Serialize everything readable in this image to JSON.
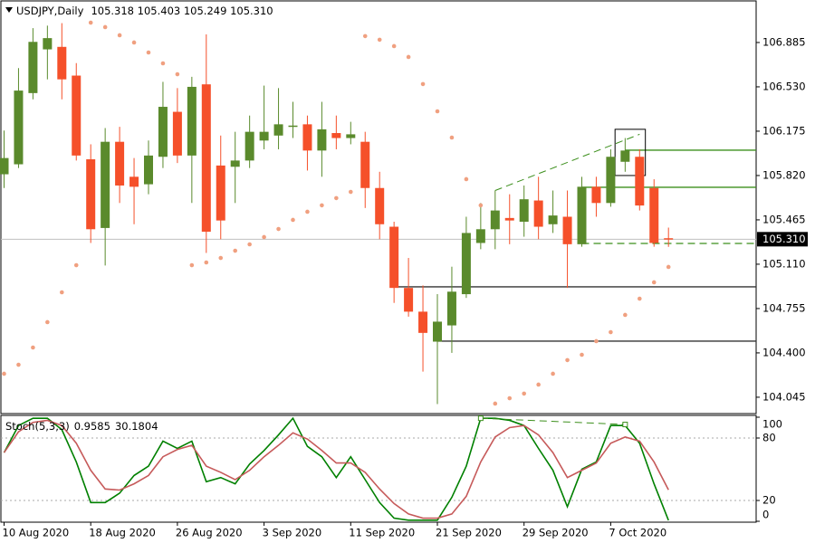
{
  "chart_data": [
    {
      "type": "candlestick",
      "title": "USDJPY,Daily",
      "subtitle": "105.318 105.403 105.249 105.310",
      "categories": [
        "10 Aug 2020",
        null,
        null,
        null,
        null,
        null,
        "18 Aug 2020",
        null,
        null,
        null,
        null,
        null,
        "26 Aug 2020",
        null,
        null,
        null,
        null,
        null,
        "3 Sep 2020",
        null,
        null,
        null,
        null,
        null,
        "11 Sep 2020",
        null,
        null,
        null,
        null,
        null,
        "21 Sep 2020",
        null,
        null,
        null,
        null,
        null,
        "29 Sep 2020",
        null,
        null,
        null,
        null,
        null,
        "7 Oct 2020",
        null,
        null,
        null,
        null
      ],
      "open": [
        105.83,
        105.91,
        106.48,
        106.83,
        106.85,
        106.62,
        105.95,
        105.4,
        106.09,
        105.81,
        105.75,
        105.97,
        106.33,
        105.98,
        106.55,
        105.9,
        105.89,
        105.94,
        106.1,
        106.14,
        106.21,
        106.23,
        106.02,
        106.16,
        106.12,
        106.09,
        105.72,
        105.41,
        104.92,
        104.73,
        104.49,
        104.62,
        104.87,
        105.28,
        105.39,
        105.48,
        105.45,
        105.62,
        105.43,
        105.49,
        105.27,
        105.73,
        105.6,
        105.93,
        105.97,
        105.72,
        105.318
      ],
      "high": [
        106.18,
        106.68,
        107.0,
        107.02,
        107.04,
        106.72,
        106.07,
        106.2,
        106.21,
        105.96,
        106.1,
        106.57,
        106.52,
        106.61,
        106.95,
        106.14,
        106.17,
        106.3,
        106.54,
        106.52,
        106.41,
        106.3,
        106.41,
        106.3,
        106.25,
        106.17,
        105.85,
        105.45,
        105.16,
        104.94,
        104.87,
        105.09,
        105.49,
        105.6,
        105.7,
        105.67,
        105.74,
        105.81,
        105.7,
        105.7,
        105.81,
        105.81,
        106.03,
        106.12,
        106.03,
        105.79,
        105.403
      ],
      "low": [
        105.72,
        105.88,
        106.43,
        106.59,
        106.43,
        105.94,
        105.28,
        105.1,
        105.6,
        105.43,
        105.67,
        105.88,
        105.92,
        105.6,
        105.2,
        105.31,
        105.6,
        105.88,
        106.03,
        106.03,
        106.12,
        105.86,
        105.81,
        106.03,
        106.07,
        105.56,
        105.31,
        104.8,
        104.69,
        104.25,
        103.99,
        104.4,
        104.84,
        105.23,
        105.23,
        105.27,
        105.33,
        105.31,
        105.36,
        104.92,
        105.25,
        105.49,
        105.57,
        105.85,
        105.54,
        105.25,
        105.249
      ],
      "close": [
        105.96,
        106.5,
        106.89,
        106.92,
        106.59,
        105.98,
        105.39,
        106.09,
        105.74,
        105.73,
        105.98,
        106.37,
        105.98,
        106.53,
        105.37,
        105.46,
        105.94,
        106.17,
        106.17,
        106.23,
        106.22,
        106.02,
        106.19,
        106.12,
        106.15,
        105.72,
        105.43,
        104.92,
        104.73,
        104.56,
        104.65,
        104.89,
        105.36,
        105.39,
        105.54,
        105.46,
        105.63,
        105.41,
        105.5,
        105.27,
        105.73,
        105.6,
        105.97,
        106.02,
        105.58,
        105.28,
        105.31
      ],
      "sar": [
        104.233,
        104.305,
        104.443,
        104.646,
        104.885,
        105.102,
        107.044,
        107.008,
        106.943,
        106.885,
        106.805,
        106.718,
        106.631,
        105.102,
        105.124,
        105.16,
        105.218,
        105.269,
        105.327,
        105.392,
        105.465,
        105.53,
        105.581,
        105.639,
        105.689,
        106.936,
        106.907,
        106.856,
        106.769,
        106.552,
        106.334,
        106.124,
        105.791,
        105.581,
        103.994,
        104.037,
        104.074,
        104.146,
        104.233,
        104.342,
        104.385,
        104.494,
        104.566,
        104.704,
        104.834,
        104.965,
        105.088
      ],
      "up_color": "#5a8a2c",
      "down_color": "#f5502a",
      "sar_color": "#f0a080",
      "last_price": {
        "value": 105.31,
        "label": "105.310"
      },
      "hlines": [
        {
          "value": 106.023,
          "start": 43,
          "color": "#3c8f1c",
          "dashed": false
        },
        {
          "value": 105.726,
          "start": 40,
          "color": "#3c8f1c",
          "dashed": false
        },
        {
          "value": 105.276,
          "start": 40,
          "color": "#3c8f1c",
          "dashed": true
        },
        {
          "value": 104.929,
          "start": 27,
          "color": "#333333",
          "dashed": false
        },
        {
          "value": 104.494,
          "start": 30,
          "color": "#333333",
          "dashed": false
        }
      ],
      "trendline": {
        "x": [
          34,
          44
        ],
        "y": [
          105.7,
          106.15
        ],
        "color": "#3c8f1c"
      },
      "box": {
        "x": [
          42.3,
          44.4
        ],
        "y": [
          106.19,
          105.82
        ]
      },
      "ylim": [
        103.914,
        107.218
      ],
      "yticks": [
        106.885,
        {
          "value": 106.53,
          "label": "106.530"
        },
        106.175,
        {
          "value": 105.82,
          "label": "105.820"
        },
        105.465,
        {
          "value": 105.11,
          "label": "105.110"
        },
        104.755,
        {
          "value": 104.4,
          "label": "104.400"
        },
        104.045
      ]
    },
    {
      "type": "line",
      "title": "Stoch(5,3,3)",
      "series": [
        {
          "name": "Main",
          "color": "#008000",
          "values": [
            66,
            92,
            99,
            99,
            88,
            57,
            18,
            18,
            27,
            44,
            53,
            77,
            70,
            77,
            38,
            42,
            36,
            55,
            68,
            83,
            99,
            72,
            62,
            42,
            62,
            40,
            18,
            3,
            1,
            1,
            1,
            23,
            53,
            99,
            99,
            97,
            92,
            70,
            49,
            14,
            50,
            57,
            92,
            92,
            75,
            36,
            0.9585
          ]
        },
        {
          "name": "Signal",
          "color": "#c65a5a",
          "values": [
            66,
            86,
            95,
            97,
            92,
            75,
            49,
            31,
            30,
            36,
            44,
            62,
            69,
            73,
            53,
            47,
            40,
            49,
            62,
            73,
            85,
            79,
            68,
            56,
            56,
            47,
            31,
            17,
            7,
            3,
            3,
            7,
            24,
            57,
            81,
            90,
            92,
            83,
            66,
            42,
            49,
            56,
            75,
            81,
            77,
            57,
            30.1804
          ]
        }
      ],
      "trendline": {
        "x": [
          33,
          43
        ],
        "y": [
          99,
          93
        ],
        "color": "#3c8f1c"
      },
      "levels": [
        80,
        20
      ],
      "ylim": [
        0,
        100
      ],
      "yticks": [
        100,
        80,
        20,
        0
      ]
    }
  ]
}
